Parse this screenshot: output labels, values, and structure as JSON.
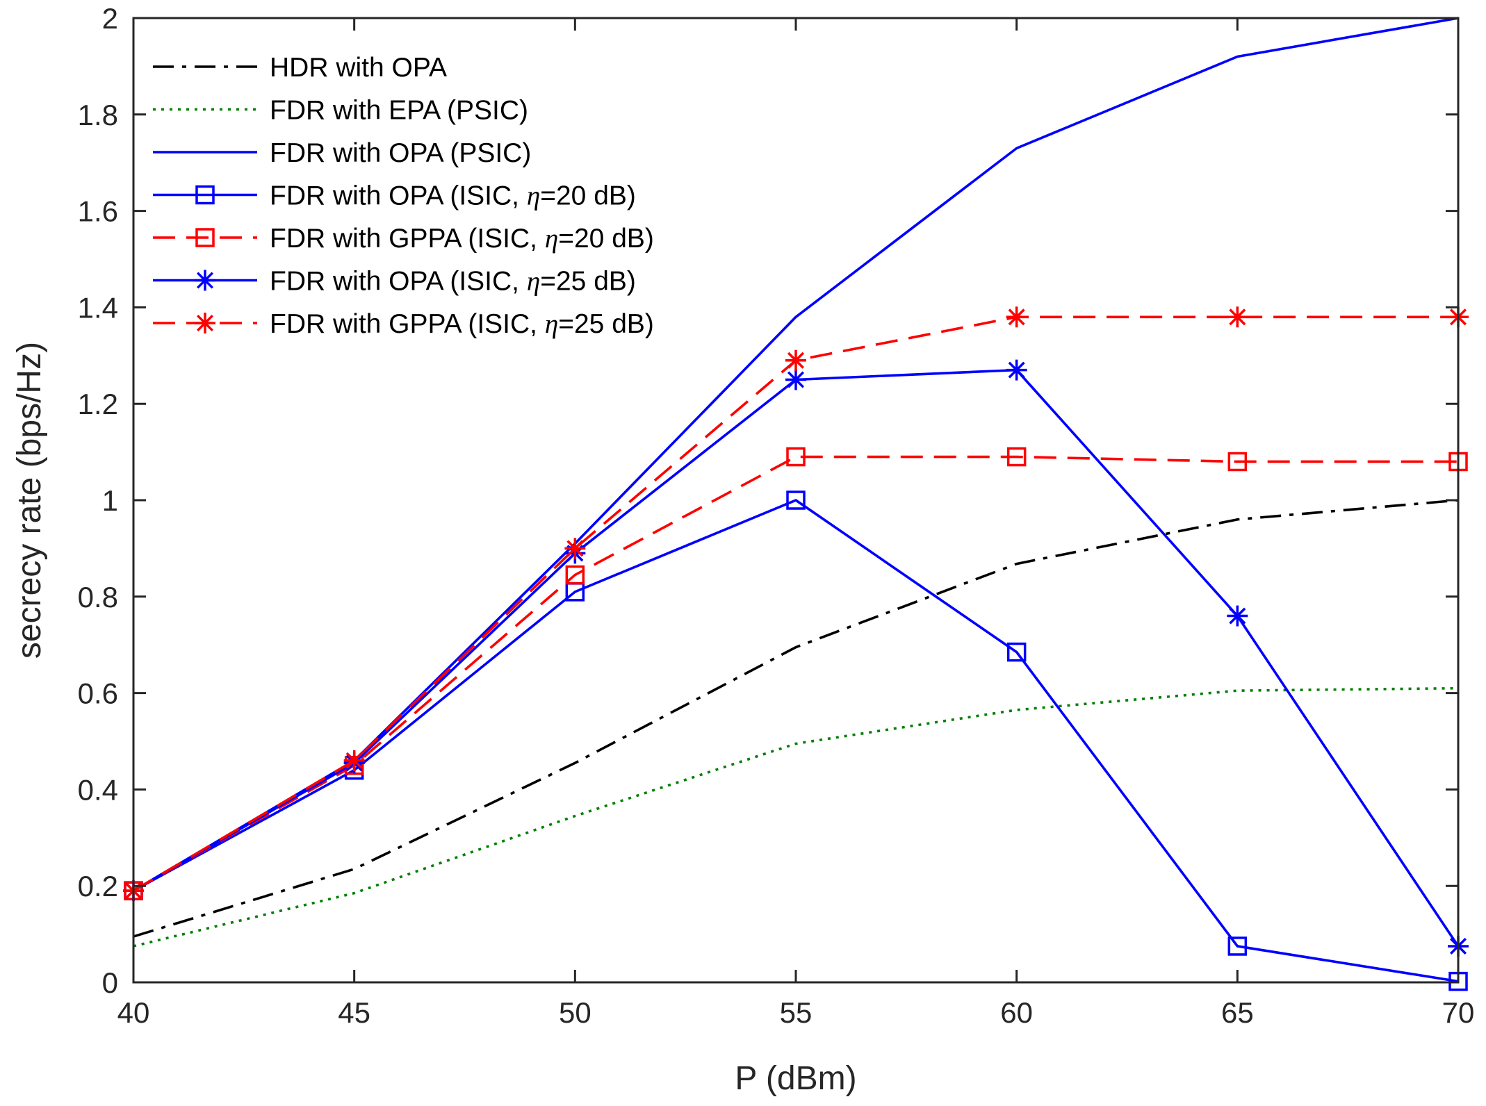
{
  "chart_data": {
    "type": "line",
    "title": "",
    "xlabel": "P (dBm)",
    "ylabel": "secrecy rate (bps/Hz)",
    "xlim": [
      40,
      70
    ],
    "ylim": [
      0,
      2
    ],
    "xticks": [
      40,
      45,
      50,
      55,
      60,
      65,
      70
    ],
    "yticks": [
      0,
      0.2,
      0.4,
      0.6,
      0.8,
      1,
      1.2,
      1.4,
      1.6,
      1.8,
      2
    ],
    "grid": false,
    "legend_position": "top-left",
    "x": [
      40,
      45,
      50,
      55,
      60,
      65,
      70
    ],
    "series": [
      {
        "name": "HDR with OPA",
        "color": "#000000",
        "dash": "dashdot",
        "marker": "none",
        "values": [
          0.095,
          0.235,
          0.455,
          0.695,
          0.868,
          0.96,
          1.0
        ]
      },
      {
        "name": "FDR with EPA (PSIC)",
        "color": "#007f00",
        "dash": "dotted",
        "marker": "none",
        "values": [
          0.075,
          0.185,
          0.345,
          0.495,
          0.565,
          0.605,
          0.61
        ]
      },
      {
        "name": "FDR with OPA (PSIC)",
        "color": "#0000ff",
        "dash": "solid",
        "marker": "none",
        "values": [
          0.19,
          0.46,
          0.91,
          1.38,
          1.73,
          1.92,
          2.0
        ]
      },
      {
        "name": "FDR with OPA (ISIC, η=20 dB)",
        "label_pre": "FDR with OPA (ISIC, ",
        "label_eta": "η",
        "label_post": "=20 dB)",
        "color": "#0000ff",
        "dash": "solid",
        "marker": "square",
        "values": [
          0.19,
          0.44,
          0.81,
          1.0,
          0.685,
          0.075,
          0.002
        ]
      },
      {
        "name": "FDR with GPPA (ISIC, η=20 dB)",
        "label_pre": "FDR with GPPA (ISIC, ",
        "label_eta": "η",
        "label_post": "=20 dB)",
        "color": "#ff0000",
        "dash": "dashed",
        "marker": "square",
        "values": [
          0.19,
          0.45,
          0.845,
          1.09,
          1.09,
          1.08,
          1.08
        ]
      },
      {
        "name": "FDR with OPA (ISIC, η=25 dB)",
        "label_pre": "FDR with OPA (ISIC, ",
        "label_eta": "η",
        "label_post": "=25 dB)",
        "color": "#0000ff",
        "dash": "solid",
        "marker": "asterisk",
        "values": [
          0.19,
          0.455,
          0.89,
          1.25,
          1.27,
          0.76,
          0.075
        ]
      },
      {
        "name": "FDR with GPPA (ISIC, η=25 dB)",
        "label_pre": "FDR with GPPA (ISIC, ",
        "label_eta": "η",
        "label_post": "=25 dB)",
        "color": "#ff0000",
        "dash": "dashed",
        "marker": "asterisk",
        "values": [
          0.19,
          0.46,
          0.9,
          1.29,
          1.38,
          1.38,
          1.38
        ]
      }
    ]
  }
}
